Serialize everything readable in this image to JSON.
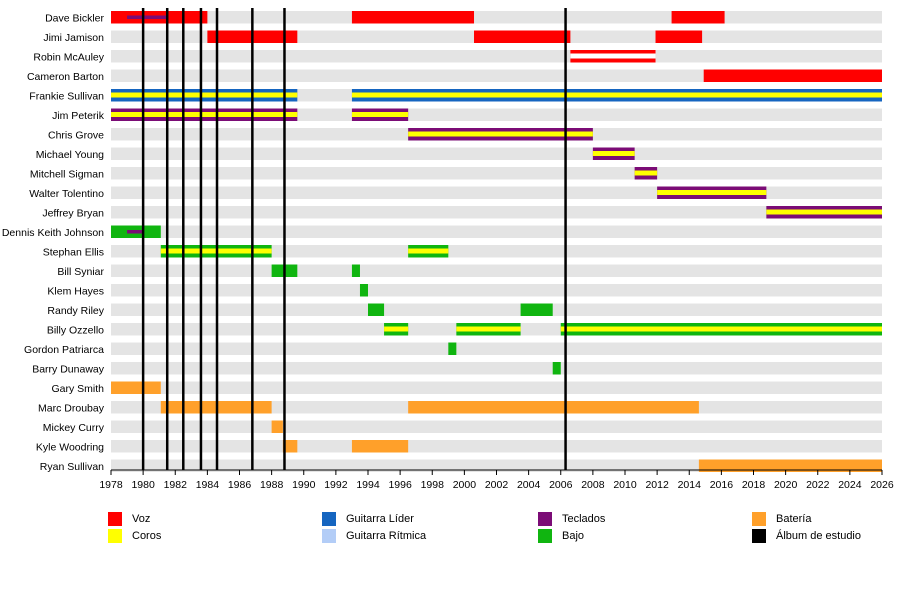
{
  "chart_data": {
    "type": "timeline",
    "x_range": [
      1978,
      2026
    ],
    "x_ticks": [
      "1978",
      "1980",
      "1982",
      "1984",
      "1986",
      "1988",
      "1990",
      "1992",
      "1994",
      "1996",
      "1998",
      "2000",
      "2002",
      "2004",
      "2006",
      "2008",
      "2010",
      "2012",
      "2014",
      "2016",
      "2018",
      "2020",
      "2022",
      "2024",
      "2026"
    ],
    "colors": {
      "voz": "#ff0000",
      "coros": "#ffff00",
      "guitarra_lider": "#1565c0",
      "guitarra_ritmica": "#b3cdf7",
      "teclados": "#7b0c76",
      "bajo": "#10b510",
      "bateria": "#ffa02a",
      "album": "#000000"
    },
    "members": [
      {
        "name": "Dave Bickler",
        "bars": [
          {
            "role": "voz",
            "start": 1978.0,
            "end": 1984.0
          },
          {
            "role": "voz",
            "start": 1993.0,
            "end": 2000.6
          },
          {
            "role": "voz",
            "start": 2012.9,
            "end": 2016.2
          }
        ],
        "overlays": [
          {
            "role": "teclados",
            "start": 1979.0,
            "end": 1981.5
          }
        ]
      },
      {
        "name": "Jimi Jamison",
        "bars": [
          {
            "role": "voz",
            "start": 1984.0,
            "end": 1989.6
          },
          {
            "role": "voz",
            "start": 2000.6,
            "end": 2006.6
          },
          {
            "role": "voz",
            "start": 2011.9,
            "end": 2014.8
          }
        ]
      },
      {
        "name": "Robin McAuley",
        "bars": [
          {
            "role": "voz",
            "start": 2006.6,
            "end": 2011.9,
            "stripe": "#ffffff"
          }
        ]
      },
      {
        "name": "Cameron Barton",
        "bars": [
          {
            "role": "voz",
            "start": 2014.9,
            "end": 2026.0
          }
        ]
      },
      {
        "name": "Frankie Sullivan",
        "bars": [
          {
            "role": "guitarra_lider",
            "start": 1978.0,
            "end": 1989.6,
            "stripe": "coros"
          },
          {
            "role": "guitarra_lider",
            "start": 1993.0,
            "end": 2026.0,
            "stripe": "coros"
          }
        ]
      },
      {
        "name": "Jim Peterik",
        "bars": [
          {
            "role": "teclados",
            "start": 1978.0,
            "end": 1989.6,
            "stripe": "coros",
            "inner": "#ffff33"
          },
          {
            "role": "teclados",
            "start": 1993.0,
            "end": 1996.5,
            "stripe": "coros"
          }
        ]
      },
      {
        "name": "Chris Grove",
        "bars": [
          {
            "role": "teclados",
            "start": 1996.5,
            "end": 2008.0,
            "stripe": "coros"
          }
        ]
      },
      {
        "name": "Michael Young",
        "bars": [
          {
            "role": "teclados",
            "start": 2008.0,
            "end": 2010.6,
            "stripe": "coros"
          }
        ]
      },
      {
        "name": "Mitchell Sigman",
        "bars": [
          {
            "role": "teclados",
            "start": 2010.6,
            "end": 2012.0,
            "stripe": "coros"
          }
        ]
      },
      {
        "name": "Walter Tolentino",
        "bars": [
          {
            "role": "teclados",
            "start": 2012.0,
            "end": 2018.8,
            "stripe": "coros"
          }
        ]
      },
      {
        "name": "Jeffrey Bryan",
        "bars": [
          {
            "role": "teclados",
            "start": 2018.8,
            "end": 2026.0,
            "stripe": "coros"
          }
        ]
      },
      {
        "name": "Dennis Keith Johnson",
        "bars": [
          {
            "role": "bajo",
            "start": 1978.0,
            "end": 1981.1
          }
        ],
        "overlays": [
          {
            "role": "teclados",
            "start": 1979.0,
            "end": 1980.0
          }
        ]
      },
      {
        "name": "Stephan Ellis",
        "bars": [
          {
            "role": "bajo",
            "start": 1981.1,
            "end": 1988.0,
            "stripe": "coros"
          },
          {
            "role": "bajo",
            "start": 1996.5,
            "end": 1999.0,
            "stripe": "coros"
          }
        ]
      },
      {
        "name": "Bill Syniar",
        "bars": [
          {
            "role": "bajo",
            "start": 1988.0,
            "end": 1989.6
          },
          {
            "role": "bajo",
            "start": 1993.0,
            "end": 1993.5
          }
        ]
      },
      {
        "name": "Klem Hayes",
        "bars": [
          {
            "role": "bajo",
            "start": 1993.5,
            "end": 1994.0
          }
        ]
      },
      {
        "name": "Randy Riley",
        "bars": [
          {
            "role": "bajo",
            "start": 1994.0,
            "end": 1995.0
          },
          {
            "role": "bajo",
            "start": 2003.5,
            "end": 2005.5
          }
        ]
      },
      {
        "name": "Billy Ozzello",
        "bars": [
          {
            "role": "bajo",
            "start": 1995.0,
            "end": 1996.5,
            "stripe": "coros"
          },
          {
            "role": "bajo",
            "start": 1999.5,
            "end": 2003.5,
            "stripe": "coros"
          },
          {
            "role": "bajo",
            "start": 2006.0,
            "end": 2026.0,
            "stripe": "coros"
          }
        ]
      },
      {
        "name": "Gordon Patriarca",
        "bars": [
          {
            "role": "bajo",
            "start": 1999.0,
            "end": 1999.5
          }
        ]
      },
      {
        "name": "Barry Dunaway",
        "bars": [
          {
            "role": "bajo",
            "start": 2005.5,
            "end": 2006.0
          }
        ]
      },
      {
        "name": "Gary Smith",
        "bars": [
          {
            "role": "bateria",
            "start": 1978.0,
            "end": 1981.1
          }
        ]
      },
      {
        "name": "Marc Droubay",
        "bars": [
          {
            "role": "bateria",
            "start": 1981.1,
            "end": 1988.0
          },
          {
            "role": "bateria",
            "start": 1996.5,
            "end": 2014.6
          }
        ]
      },
      {
        "name": "Mickey Curry",
        "bars": [
          {
            "role": "bateria",
            "start": 1988.0,
            "end": 1988.7
          }
        ]
      },
      {
        "name": "Kyle Woodring",
        "bars": [
          {
            "role": "bateria",
            "start": 1988.7,
            "end": 1989.6
          },
          {
            "role": "bateria",
            "start": 1993.0,
            "end": 1996.5
          }
        ]
      },
      {
        "name": "Ryan Sullivan",
        "bars": [
          {
            "role": "bateria",
            "start": 2014.6,
            "end": 2026.0
          }
        ]
      }
    ],
    "albums": [
      1980.0,
      1981.5,
      1982.5,
      1983.6,
      1984.6,
      1986.8,
      1988.8,
      2006.3
    ]
  },
  "legend": [
    {
      "label": "Voz",
      "role": "voz",
      "name": "legend-voz"
    },
    {
      "label": "Coros",
      "role": "coros",
      "name": "legend-coros"
    },
    {
      "label": "Guitarra Líder",
      "role": "guitarra_lider",
      "name": "legend-guitarra-lider"
    },
    {
      "label": "Guitarra Rítmica",
      "role": "guitarra_ritmica",
      "name": "legend-guitarra-ritmica"
    },
    {
      "label": "Teclados",
      "role": "teclados",
      "name": "legend-teclados"
    },
    {
      "label": "Bajo",
      "role": "bajo",
      "name": "legend-bajo"
    },
    {
      "label": "Batería",
      "role": "bateria",
      "name": "legend-bateria"
    },
    {
      "label": "Álbum de estudio",
      "role": "album",
      "name": "legend-album"
    }
  ]
}
